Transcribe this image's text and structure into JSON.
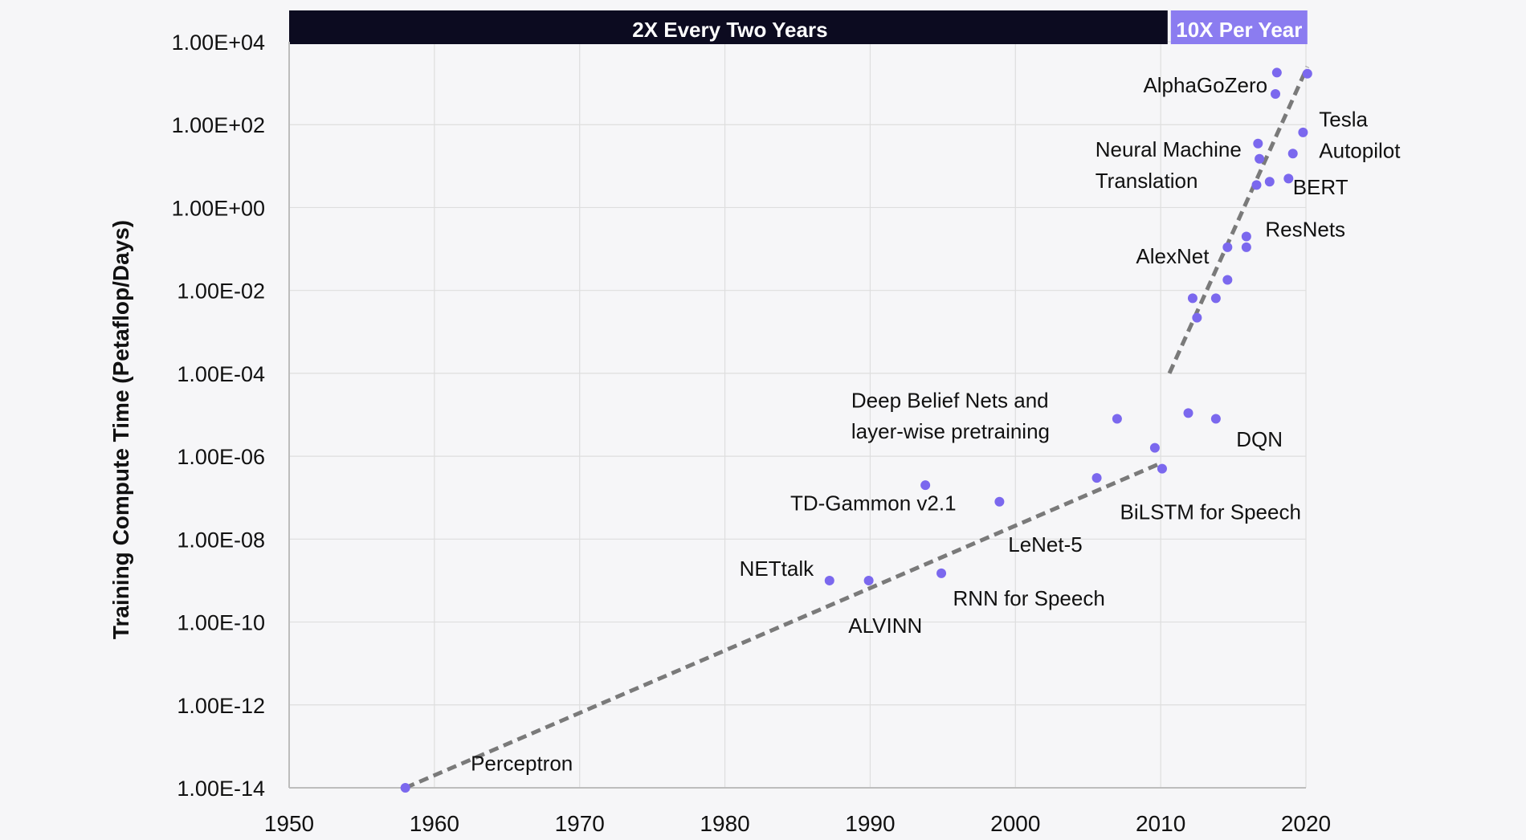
{
  "chart_data": {
    "type": "scatter",
    "title": "",
    "xlabel": "",
    "ylabel": "Training Compute Time (Petaflop/Days)",
    "xlim": [
      1950,
      2021
    ],
    "ylim": [
      1e-14,
      10000.0
    ],
    "y_scale": "log",
    "grid": true,
    "x_ticks": [
      "1950",
      "1960",
      "1970",
      "1980",
      "1990",
      "2000",
      "2010",
      "2020"
    ],
    "y_ticks": [
      "1.00E-14",
      "1.00E-12",
      "1.00E-10",
      "1.00E-08",
      "1.00E-06",
      "1.00E-04",
      "1.00E-02",
      "1.00E+00",
      "1.00E+02",
      "1.00E+04"
    ],
    "bands": [
      {
        "label": "2X Every Two Years",
        "x_start": 1950,
        "x_end": 2010.7,
        "color": "#0c0b20"
      },
      {
        "label": "10X Per Year",
        "x_start": 2010.7,
        "x_end": 2020.1,
        "color": "#8b7cf0"
      }
    ],
    "points": [
      {
        "x": 1958,
        "y": 1e-14
      },
      {
        "x": 1987.2,
        "y": 1e-09
      },
      {
        "x": 1989.9,
        "y": 1e-09
      },
      {
        "x": 1993.8,
        "y": 2e-07
      },
      {
        "x": 1994.9,
        "y": 1.5e-09
      },
      {
        "x": 1998.9,
        "y": 8e-08
      },
      {
        "x": 2005.6,
        "y": 3e-07
      },
      {
        "x": 2007,
        "y": 8e-06
      },
      {
        "x": 2009.6,
        "y": 1.6e-06
      },
      {
        "x": 2010.1,
        "y": 5e-07
      },
      {
        "x": 2011.9,
        "y": 1.1e-05
      },
      {
        "x": 2013.8,
        "y": 8e-06
      },
      {
        "x": 2012.2,
        "y": 0.0065
      },
      {
        "x": 2012.5,
        "y": 0.0022
      },
      {
        "x": 2013.8,
        "y": 0.0065
      },
      {
        "x": 2014.6,
        "y": 0.11
      },
      {
        "x": 2014.6,
        "y": 0.018
      },
      {
        "x": 2015.9,
        "y": 0.2
      },
      {
        "x": 2015.9,
        "y": 0.11
      },
      {
        "x": 2016.6,
        "y": 3.5
      },
      {
        "x": 2016.7,
        "y": 35
      },
      {
        "x": 2016.8,
        "y": 15
      },
      {
        "x": 2017.5,
        "y": 4.2
      },
      {
        "x": 2017.9,
        "y": 550
      },
      {
        "x": 2018,
        "y": 1800
      },
      {
        "x": 2018.8,
        "y": 5
      },
      {
        "x": 2019.1,
        "y": 20
      },
      {
        "x": 2019.8,
        "y": 65
      },
      {
        "x": 2020.1,
        "y": 1700
      }
    ],
    "trend_lines": [
      {
        "x": [
          1958,
          2010.1
        ],
        "y": [
          1e-14,
          7e-07
        ]
      },
      {
        "x": [
          2010.6,
          2020.1
        ],
        "y": [
          0.0001,
          2500
        ]
      }
    ],
    "annotations": [
      {
        "text": "Perceptron",
        "x": 1962.5,
        "y": 2.6e-14
      },
      {
        "text": "NETtalk",
        "x": 1981,
        "y": 1.3e-09
      },
      {
        "text": "ALVINN",
        "x": 1988.5,
        "y": 5.5e-11
      },
      {
        "text": "TD-Gammon v2.1",
        "x": 1984.5,
        "y": 5e-08
      },
      {
        "text": "RNN for Speech",
        "x": 1995.7,
        "y": 2.5e-10
      },
      {
        "text": "LeNet-5",
        "x": 1999.5,
        "y": 5e-09
      },
      {
        "text": "BiLSTM for Speech",
        "x": 2007.2,
        "y": 3e-08
      },
      {
        "text": "Deep Belief Nets and",
        "x": 1988.7,
        "y": 1.5e-05
      },
      {
        "text": "layer-wise pretraining",
        "x": 1988.7,
        "y": 2.7e-06
      },
      {
        "text": "DQN",
        "x": 2015.2,
        "y": 1.7e-06
      },
      {
        "text": "AlexNet",
        "x": 2008.3,
        "y": 0.045
      },
      {
        "text": "ResNets",
        "x": 2017.2,
        "y": 0.2
      },
      {
        "text": "Neural Machine",
        "x": 2005.5,
        "y": 17
      },
      {
        "text": "Translation",
        "x": 2005.5,
        "y": 3
      },
      {
        "text": "BERT",
        "x": 2019.1,
        "y": 2.1
      },
      {
        "text": "Tesla",
        "x": 2020.9,
        "y": 90
      },
      {
        "text": "Autopilot",
        "x": 2020.9,
        "y": 16
      },
      {
        "text": "AlphaGoZero",
        "x": 2008.8,
        "y": 600
      }
    ],
    "point_color": "#7b68ee",
    "trend_color": "#7a7a7a"
  }
}
